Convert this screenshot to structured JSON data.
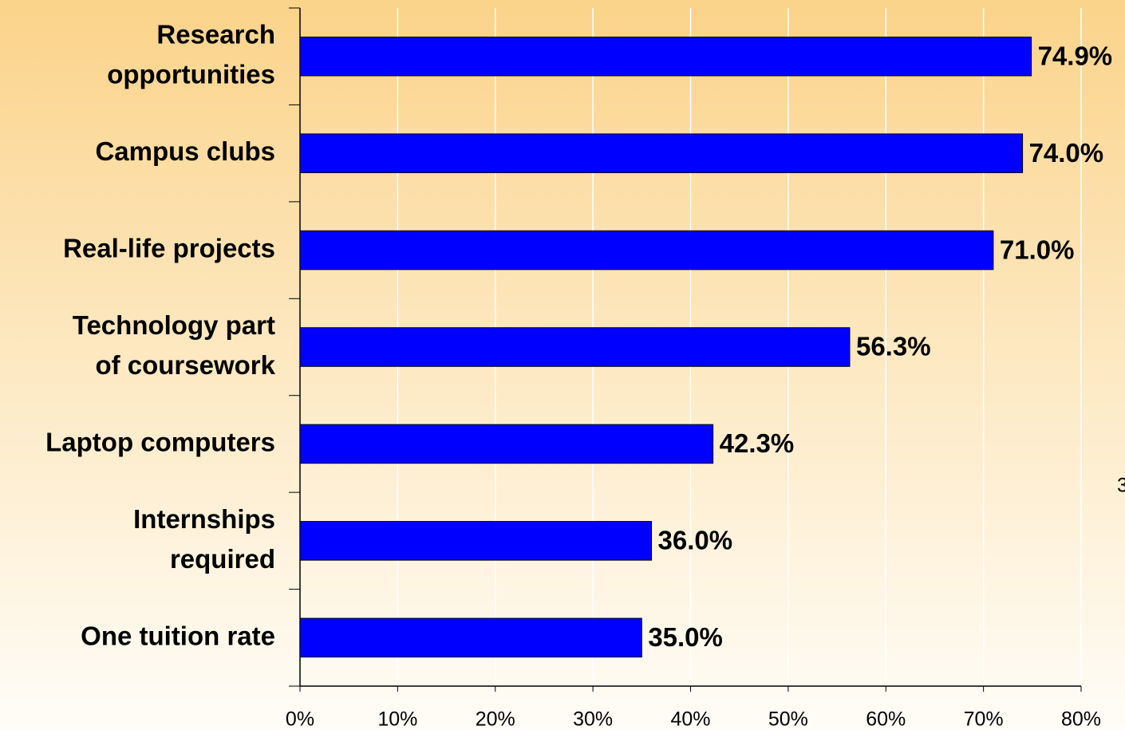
{
  "chart_data": {
    "type": "barh",
    "categories": [
      "Research\nopportunities",
      "Campus clubs",
      "Real-life projects",
      "Technology part\nof coursework",
      "Laptop computers",
      "Internships\nrequired",
      "One tuition rate"
    ],
    "values": [
      74.9,
      74.0,
      71.0,
      56.3,
      42.3,
      36.0,
      35.0
    ],
    "value_labels": [
      "74.9%",
      "74.0%",
      "71.0%",
      "56.3%",
      "42.3%",
      "36.0%",
      "35.0%"
    ],
    "color": "#0000ff",
    "xlim": [
      0,
      80
    ],
    "xticks": [
      {
        "value": 0,
        "label": "0%"
      },
      {
        "value": 10,
        "label": "10%"
      },
      {
        "value": 20,
        "label": "20%"
      },
      {
        "value": 30,
        "label": "30%"
      },
      {
        "value": 40,
        "label": "40%"
      },
      {
        "value": 50,
        "label": "50%"
      },
      {
        "value": 60,
        "label": "60%"
      },
      {
        "value": 70,
        "label": "70%"
      },
      {
        "value": 80,
        "label": "80%"
      }
    ],
    "grid": true,
    "annotation": "3"
  }
}
